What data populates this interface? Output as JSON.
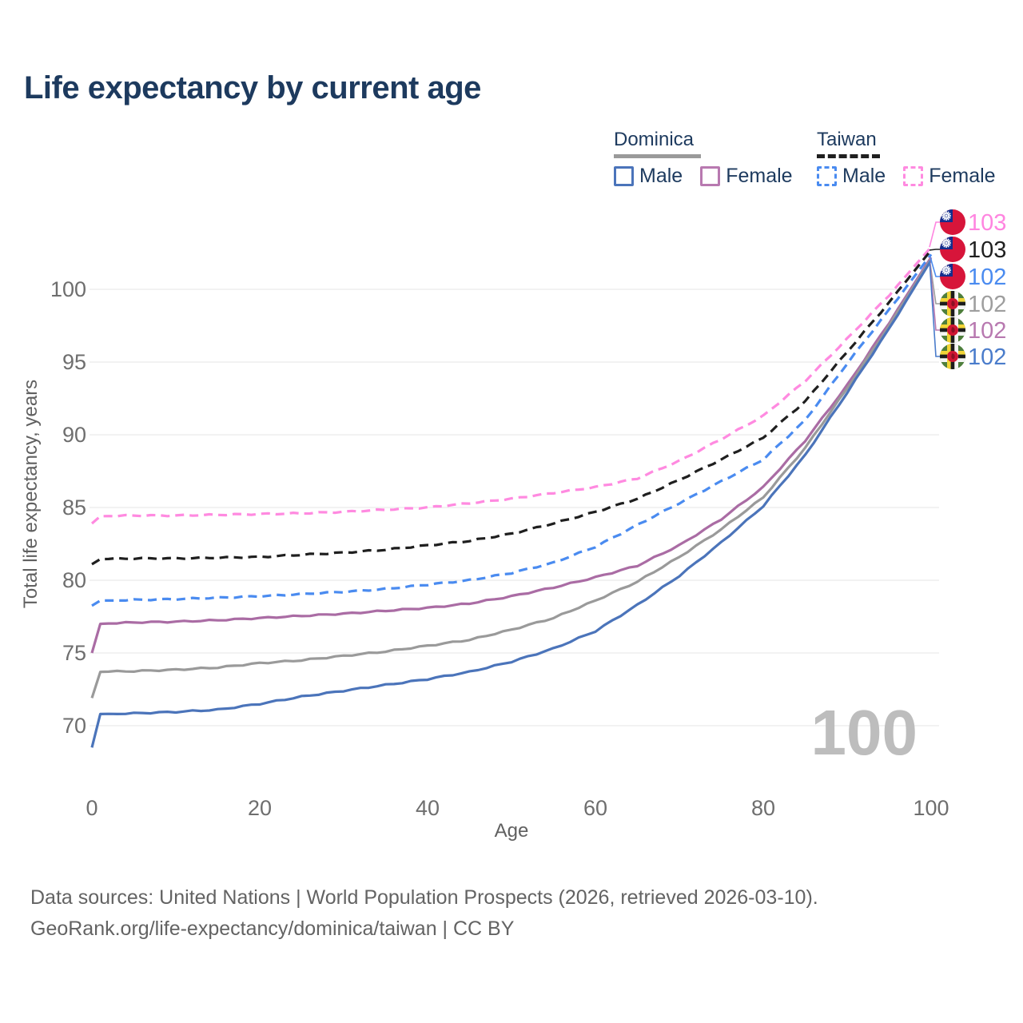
{
  "title": "Life expectancy by current age",
  "legend": {
    "groups": [
      {
        "label": "Dominica",
        "line_style": "solid",
        "line_color": "#9a9a9a",
        "items": [
          {
            "label": "Male",
            "color": "#4b74ba",
            "dashed": false
          },
          {
            "label": "Female",
            "color": "#b879b0",
            "dashed": false
          }
        ]
      },
      {
        "label": "Taiwan",
        "line_style": "dashed",
        "line_color": "#1f1f1f",
        "items": [
          {
            "label": "Male",
            "color": "#4a8bf0",
            "dashed": true
          },
          {
            "label": "Female",
            "color": "#ff8ae0",
            "dashed": true
          }
        ]
      }
    ]
  },
  "chart_data": {
    "type": "line",
    "title": "Life expectancy by current age",
    "xlabel": "Age",
    "ylabel": "Total life expectancy, years",
    "xlim": [
      0,
      100
    ],
    "ylim": [
      67.5,
      104
    ],
    "x_ticks": [
      0,
      20,
      40,
      60,
      80,
      100
    ],
    "y_ticks": [
      70,
      75,
      80,
      85,
      90,
      95,
      100
    ],
    "grid": "horizontal",
    "gridline_color": "#eaeaea",
    "tick_color": "#6e6e6e",
    "axis_title_color": "#606060",
    "watermark": "100",
    "watermark_color": "#bdbdbd",
    "series": [
      {
        "id": "taiwan-female",
        "name": "Taiwan Female",
        "country": "Taiwan",
        "sex": "Female",
        "color": "#ff8ae0",
        "label_color": "#ff85e0",
        "dashed": true,
        "flag": "taiwan",
        "end_label": "103",
        "points": [
          [
            0,
            83.9
          ],
          [
            1,
            84.4
          ],
          [
            5,
            84.45
          ],
          [
            10,
            84.45
          ],
          [
            15,
            84.5
          ],
          [
            20,
            84.55
          ],
          [
            25,
            84.6
          ],
          [
            30,
            84.7
          ],
          [
            35,
            84.85
          ],
          [
            40,
            85.0
          ],
          [
            45,
            85.3
          ],
          [
            50,
            85.6
          ],
          [
            55,
            86.0
          ],
          [
            60,
            86.4
          ],
          [
            65,
            87.0
          ],
          [
            70,
            88.2
          ],
          [
            75,
            89.7
          ],
          [
            80,
            91.3
          ],
          [
            85,
            93.7
          ],
          [
            90,
            96.6
          ],
          [
            95,
            99.6
          ],
          [
            100,
            102.9
          ]
        ]
      },
      {
        "id": "taiwan-all",
        "name": "Taiwan (both sexes)",
        "country": "Taiwan",
        "sex": "All",
        "color": "#1f1f1f",
        "label_color": "#1f1f1f",
        "dashed": true,
        "flag": "taiwan",
        "end_label": "103",
        "points": [
          [
            0,
            81.1
          ],
          [
            1,
            81.45
          ],
          [
            5,
            81.5
          ],
          [
            10,
            81.5
          ],
          [
            15,
            81.55
          ],
          [
            20,
            81.6
          ],
          [
            25,
            81.75
          ],
          [
            30,
            81.9
          ],
          [
            35,
            82.1
          ],
          [
            40,
            82.4
          ],
          [
            45,
            82.7
          ],
          [
            50,
            83.2
          ],
          [
            55,
            83.9
          ],
          [
            60,
            84.7
          ],
          [
            65,
            85.6
          ],
          [
            70,
            86.9
          ],
          [
            75,
            88.3
          ],
          [
            80,
            89.8
          ],
          [
            85,
            92.3
          ],
          [
            90,
            95.7
          ],
          [
            95,
            99.1
          ],
          [
            100,
            102.7
          ]
        ]
      },
      {
        "id": "taiwan-male",
        "name": "Taiwan Male",
        "country": "Taiwan",
        "sex": "Male",
        "color": "#4a8bf0",
        "label_color": "#4a8bf0",
        "dashed": true,
        "flag": "taiwan",
        "end_label": "102",
        "points": [
          [
            0,
            78.25
          ],
          [
            1,
            78.6
          ],
          [
            5,
            78.65
          ],
          [
            10,
            78.7
          ],
          [
            15,
            78.8
          ],
          [
            20,
            78.9
          ],
          [
            25,
            79.05
          ],
          [
            30,
            79.2
          ],
          [
            35,
            79.4
          ],
          [
            40,
            79.7
          ],
          [
            45,
            80.0
          ],
          [
            50,
            80.5
          ],
          [
            55,
            81.2
          ],
          [
            60,
            82.3
          ],
          [
            65,
            83.8
          ],
          [
            70,
            85.3
          ],
          [
            75,
            86.8
          ],
          [
            80,
            88.3
          ],
          [
            85,
            91.0
          ],
          [
            90,
            94.9
          ],
          [
            95,
            98.6
          ],
          [
            100,
            102.4
          ]
        ]
      },
      {
        "id": "dominica-female",
        "name": "Dominica Female",
        "country": "Dominica",
        "sex": "Female",
        "color": "#aa6ca4",
        "label_color": "#b879b0",
        "dashed": false,
        "flag": "dominica",
        "end_label": "102",
        "points": [
          [
            0,
            75.0
          ],
          [
            1,
            77.0
          ],
          [
            5,
            77.1
          ],
          [
            10,
            77.15
          ],
          [
            15,
            77.25
          ],
          [
            20,
            77.4
          ],
          [
            25,
            77.55
          ],
          [
            30,
            77.7
          ],
          [
            35,
            77.9
          ],
          [
            40,
            78.1
          ],
          [
            45,
            78.4
          ],
          [
            50,
            78.9
          ],
          [
            55,
            79.5
          ],
          [
            60,
            80.2
          ],
          [
            65,
            81.0
          ],
          [
            70,
            82.4
          ],
          [
            75,
            84.2
          ],
          [
            80,
            86.4
          ],
          [
            85,
            89.6
          ],
          [
            90,
            93.4
          ],
          [
            95,
            97.7
          ],
          [
            100,
            102.2
          ]
        ]
      },
      {
        "id": "dominica-all",
        "name": "Dominica (both sexes)",
        "country": "Dominica",
        "sex": "All",
        "color": "#9a9a9a",
        "label_color": "#9e9e9e",
        "dashed": false,
        "flag": "dominica",
        "end_label": "102",
        "points": [
          [
            0,
            71.9
          ],
          [
            1,
            73.7
          ],
          [
            5,
            73.75
          ],
          [
            10,
            73.85
          ],
          [
            15,
            74.0
          ],
          [
            20,
            74.3
          ],
          [
            25,
            74.5
          ],
          [
            30,
            74.8
          ],
          [
            35,
            75.1
          ],
          [
            40,
            75.5
          ],
          [
            45,
            75.9
          ],
          [
            50,
            76.6
          ],
          [
            55,
            77.4
          ],
          [
            60,
            78.6
          ],
          [
            65,
            79.9
          ],
          [
            70,
            81.6
          ],
          [
            75,
            83.5
          ],
          [
            80,
            85.7
          ],
          [
            85,
            89.1
          ],
          [
            90,
            93.2
          ],
          [
            95,
            97.5
          ],
          [
            100,
            102.1
          ]
        ]
      },
      {
        "id": "dominica-male",
        "name": "Dominica Male",
        "country": "Dominica",
        "sex": "Male",
        "color": "#4b74ba",
        "label_color": "#4a7ccb",
        "dashed": false,
        "flag": "dominica",
        "end_label": "102",
        "points": [
          [
            0,
            68.5
          ],
          [
            1,
            70.8
          ],
          [
            5,
            70.85
          ],
          [
            10,
            70.95
          ],
          [
            15,
            71.1
          ],
          [
            20,
            71.5
          ],
          [
            25,
            72.0
          ],
          [
            30,
            72.4
          ],
          [
            35,
            72.8
          ],
          [
            40,
            73.2
          ],
          [
            45,
            73.7
          ],
          [
            50,
            74.4
          ],
          [
            55,
            75.3
          ],
          [
            60,
            76.5
          ],
          [
            65,
            78.3
          ],
          [
            70,
            80.3
          ],
          [
            75,
            82.6
          ],
          [
            80,
            85.1
          ],
          [
            85,
            88.6
          ],
          [
            90,
            92.9
          ],
          [
            95,
            97.3
          ],
          [
            100,
            102.0
          ]
        ]
      }
    ],
    "end_labels_order": [
      "taiwan-female",
      "taiwan-all",
      "taiwan-male",
      "dominica-all",
      "dominica-female",
      "dominica-male"
    ],
    "flag_colors": {
      "taiwan": {
        "field": "#d7153a",
        "canton": "#132d8d",
        "sun": "#ffffff"
      },
      "dominica": {
        "field": "#4e7f3c",
        "band1": "#f2d437",
        "band2": "#1c1c1c",
        "band3": "#f5f5f5",
        "disc": "#cf1632",
        "parrot": "#8c1024"
      }
    }
  },
  "footer": {
    "line1": "Data sources: United Nations | World Population Prospects (2026, retrieved 2026-03-10).",
    "line2": "GeoRank.org/life-expectancy/dominica/taiwan | CC BY"
  }
}
